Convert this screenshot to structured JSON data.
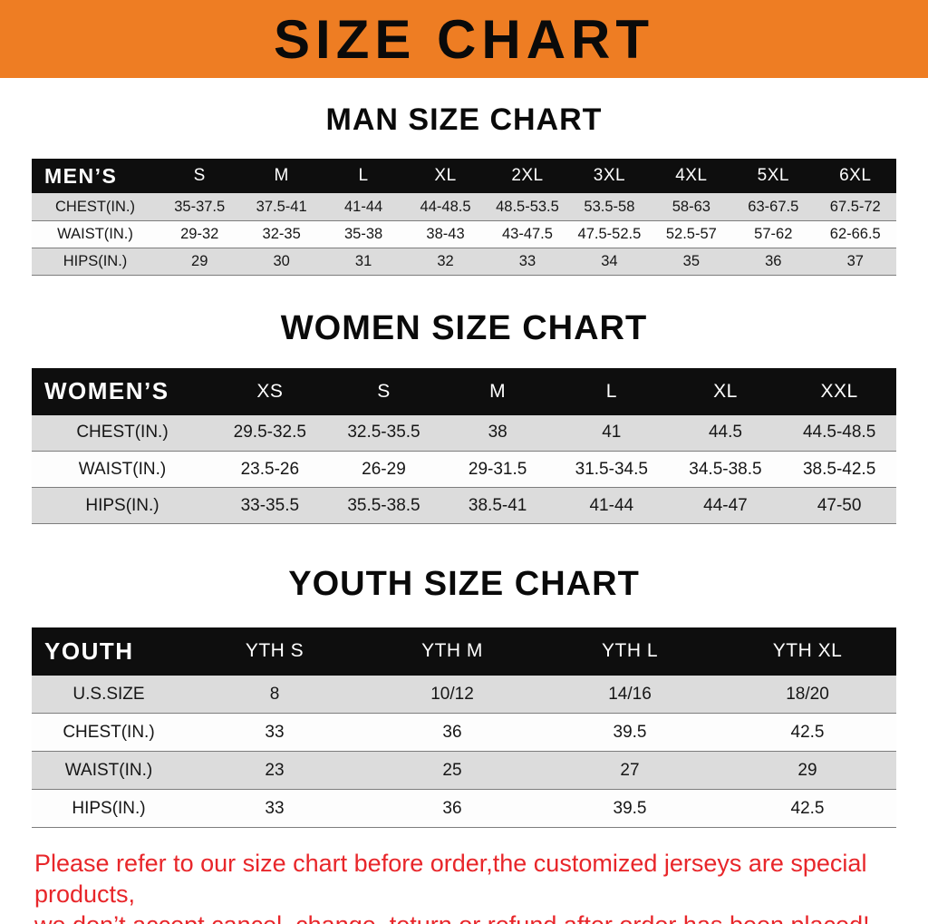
{
  "banner": {
    "title": "SIZE CHART"
  },
  "colors": {
    "banner_bg": "#EE7D23",
    "table_header_bg": "#0E0E0E",
    "row_stripe": "#DCDCDC",
    "disclaimer_red": "#E8262A"
  },
  "sections": [
    {
      "heading": "MAN SIZE CHART",
      "table": {
        "title": "MEN’S",
        "columns": [
          "S",
          "M",
          "L",
          "XL",
          "2XL",
          "3XL",
          "4XL",
          "5XL",
          "6XL"
        ],
        "rows": [
          {
            "label": "CHEST(IN.)",
            "values": [
              "35-37.5",
              "37.5-41",
              "41-44",
              "44-48.5",
              "48.5-53.5",
              "53.5-58",
              "58-63",
              "63-67.5",
              "67.5-72"
            ]
          },
          {
            "label": "WAIST(IN.)",
            "values": [
              "29-32",
              "32-35",
              "35-38",
              "38-43",
              "43-47.5",
              "47.5-52.5",
              "52.5-57",
              "57-62",
              "62-66.5"
            ]
          },
          {
            "label": "HIPS(IN.)",
            "values": [
              "29",
              "30",
              "31",
              "32",
              "33",
              "34",
              "35",
              "36",
              "37"
            ]
          }
        ]
      }
    },
    {
      "heading": "WOMEN SIZE CHART",
      "table": {
        "title": "WOMEN’S",
        "columns": [
          "XS",
          "S",
          "M",
          "L",
          "XL",
          "XXL"
        ],
        "rows": [
          {
            "label": "CHEST(IN.)",
            "values": [
              "29.5-32.5",
              "32.5-35.5",
              "38",
              "41",
              "44.5",
              "44.5-48.5"
            ]
          },
          {
            "label": "WAIST(IN.)",
            "values": [
              "23.5-26",
              "26-29",
              "29-31.5",
              "31.5-34.5",
              "34.5-38.5",
              "38.5-42.5"
            ]
          },
          {
            "label": "HIPS(IN.)",
            "values": [
              "33-35.5",
              "35.5-38.5",
              "38.5-41",
              "41-44",
              "44-47",
              "47-50"
            ]
          }
        ]
      }
    },
    {
      "heading": "YOUTH SIZE CHART",
      "table": {
        "title": "YOUTH",
        "columns": [
          "YTH S",
          "YTH M",
          "YTH L",
          "YTH XL"
        ],
        "rows": [
          {
            "label": "U.S.SIZE",
            "values": [
              "8",
              "10/12",
              "14/16",
              "18/20"
            ]
          },
          {
            "label": "CHEST(IN.)",
            "values": [
              "33",
              "36",
              "39.5",
              "42.5"
            ]
          },
          {
            "label": "WAIST(IN.)",
            "values": [
              "23",
              "25",
              "27",
              "29"
            ]
          },
          {
            "label": "HIPS(IN.)",
            "values": [
              "33",
              "36",
              "39.5",
              "42.5"
            ]
          }
        ]
      }
    }
  ],
  "disclaimer": {
    "line1": "Please refer to our size chart before order,the customized jerseys are special products,",
    "line2": "we don’t accept cancel, change, teturn or refund after order has been placed!"
  }
}
